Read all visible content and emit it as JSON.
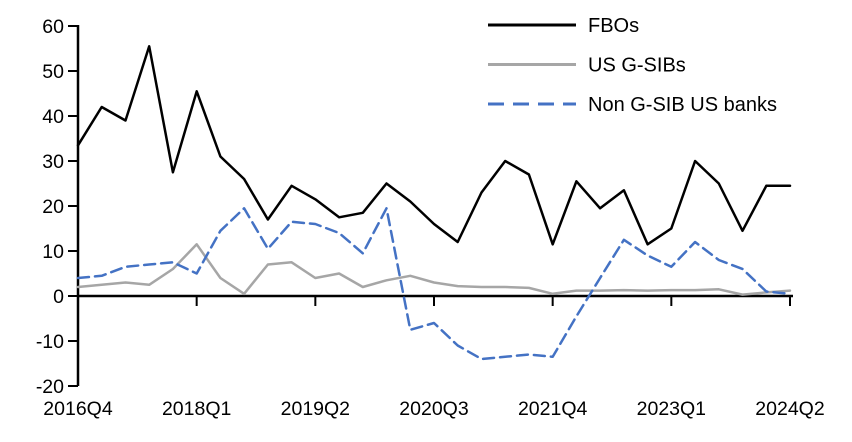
{
  "chart_data": {
    "type": "line",
    "title": "",
    "xlabel": "",
    "ylabel": "",
    "x_categories": [
      "2016Q4",
      "2017Q1",
      "2017Q2",
      "2017Q3",
      "2017Q4",
      "2018Q1",
      "2018Q2",
      "2018Q3",
      "2018Q4",
      "2019Q1",
      "2019Q2",
      "2019Q3",
      "2019Q4",
      "2020Q1",
      "2020Q2",
      "2020Q3",
      "2020Q4",
      "2021Q1",
      "2021Q2",
      "2021Q3",
      "2021Q4",
      "2022Q1",
      "2022Q2",
      "2022Q3",
      "2022Q4",
      "2023Q1",
      "2023Q2",
      "2023Q3",
      "2023Q4",
      "2024Q1",
      "2024Q2"
    ],
    "x_tick_labels": [
      "2016Q4",
      "2018Q1",
      "2019Q2",
      "2020Q3",
      "2021Q4",
      "2023Q1",
      "2024Q2"
    ],
    "y_ticks": [
      60,
      50,
      40,
      30,
      20,
      10,
      0,
      -10,
      -20
    ],
    "ylim": [
      -20,
      60
    ],
    "grid": "off",
    "legend_position": "top-right-inside",
    "series": [
      {
        "name": "FBOs",
        "color": "#000000",
        "style": "solid",
        "values": [
          33.5,
          42,
          39,
          55.5,
          27.5,
          45.5,
          31,
          26,
          17,
          24.5,
          21.5,
          17.5,
          18.5,
          25,
          21,
          16,
          12,
          23,
          30,
          27,
          11.5,
          25.5,
          19.5,
          23.5,
          11.5,
          15,
          30,
          25,
          14.5,
          24.5,
          24.5
        ]
      },
      {
        "name": "US G-SIBs",
        "color": "#a6a6a6",
        "style": "solid",
        "values": [
          2,
          2.5,
          3,
          2.5,
          6,
          11.5,
          4,
          0.5,
          7,
          7.5,
          4,
          5,
          2,
          3.5,
          4.5,
          3,
          2.2,
          2,
          2,
          1.8,
          0.5,
          1.2,
          1.2,
          1.3,
          1.2,
          1.3,
          1.3,
          1.5,
          0.3,
          0.8,
          1.2
        ]
      },
      {
        "name": "Non G-SIB US banks",
        "color": "#4472c4",
        "style": "dashed",
        "values": [
          4,
          4.5,
          6.5,
          7,
          7.5,
          5,
          14.5,
          19.5,
          10.5,
          16.5,
          16,
          14,
          9.5,
          19.5,
          -7.5,
          -6,
          -11,
          -14,
          -13.5,
          -13,
          -13.5,
          -4.5,
          4,
          12.5,
          9,
          6.5,
          12,
          8,
          6,
          1,
          0.5
        ]
      }
    ]
  },
  "colors": {
    "axis": "#000000",
    "background": "#ffffff"
  }
}
